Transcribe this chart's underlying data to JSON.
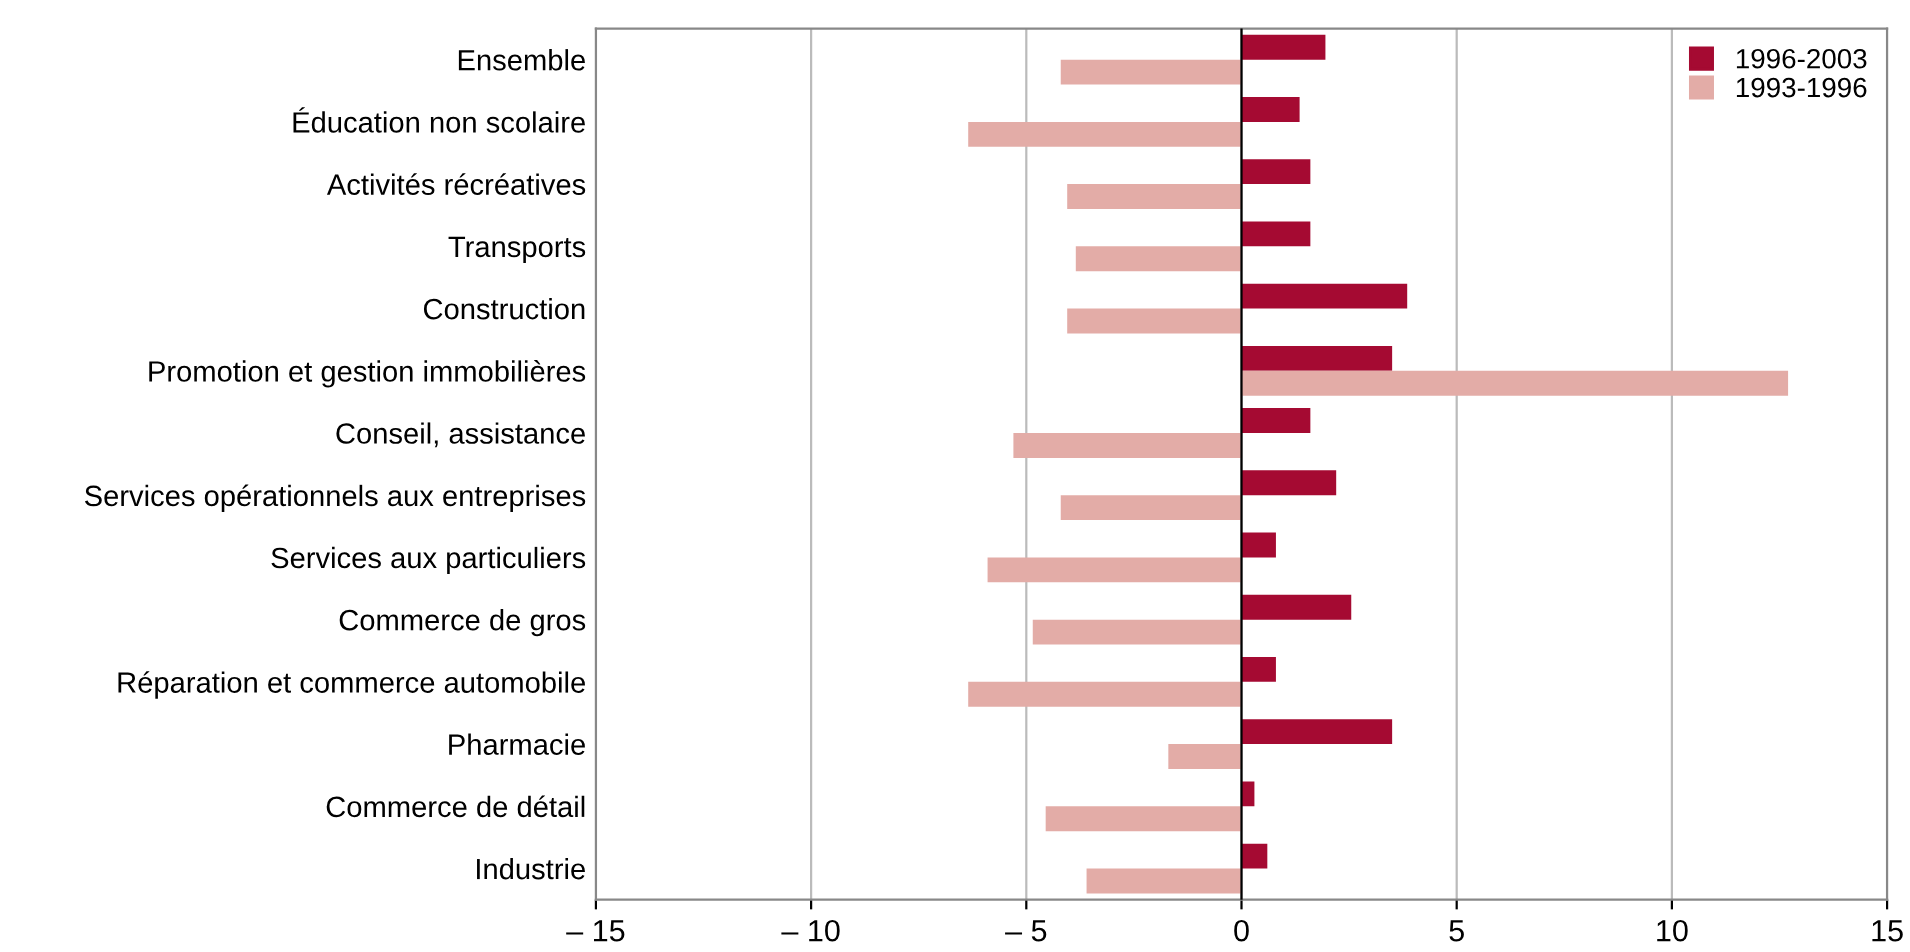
{
  "chart_data": {
    "type": "bar",
    "orientation": "horizontal",
    "categories": [
      "Ensemble",
      "Éducation non scolaire",
      "Activités récréatives",
      "Transports",
      "Construction",
      "Promotion et gestion immobilières",
      "Conseil, assistance",
      "Services opérationnels aux entreprises",
      "Services aux particuliers",
      "Commerce de gros",
      "Réparation et commerce automobile",
      "Pharmacie",
      "Commerce de détail",
      "Industrie"
    ],
    "series": [
      {
        "name": "1996-2003",
        "color": "#a50a32",
        "values": [
          1.95,
          1.35,
          1.6,
          1.6,
          3.85,
          3.5,
          1.6,
          2.2,
          0.8,
          2.55,
          0.8,
          3.5,
          0.3,
          0.6
        ]
      },
      {
        "name": "1993-1996",
        "color": "#e3aca7",
        "values": [
          -4.2,
          -6.35,
          -4.05,
          -3.85,
          -4.05,
          12.7,
          -5.3,
          -4.2,
          -5.9,
          -4.85,
          -6.35,
          -1.7,
          -4.55,
          -3.6
        ]
      }
    ],
    "xlim": [
      -15,
      15
    ],
    "xticks": [
      {
        "value": -15,
        "label": "– 15"
      },
      {
        "value": -10,
        "label": "– 10"
      },
      {
        "value": -5,
        "label": "– 5"
      },
      0,
      5,
      10,
      15
    ],
    "grid": "x",
    "legend": "top right"
  }
}
